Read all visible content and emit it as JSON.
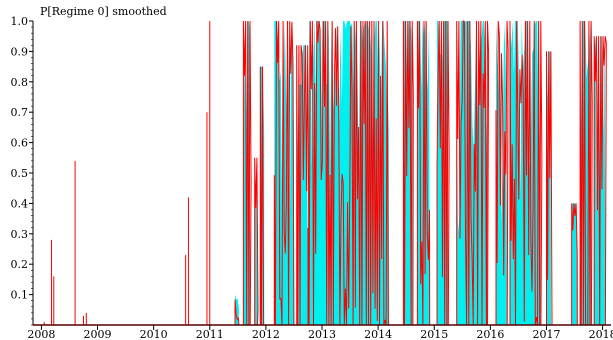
{
  "chart_data": {
    "type": "area",
    "title": "P[Regime 0] smoothed",
    "xlabel": "",
    "ylabel": "",
    "xlim": [
      2007.85,
      2018.15
    ],
    "ylim": [
      0,
      1.0
    ],
    "x_ticks": [
      "2008",
      "2009",
      "2010",
      "2011",
      "2012",
      "2013",
      "2014",
      "2015",
      "2016",
      "2017",
      "2018"
    ],
    "y_ticks": [
      "0.1",
      "0.2",
      "0.3",
      "0.4",
      "0.5",
      "0.6",
      "0.7",
      "0.8",
      "0.9",
      "1.0"
    ],
    "grid": false,
    "legend": "none",
    "colors": {
      "fill": "#00f0f0",
      "line": "#ff0000",
      "axis": "#000000"
    },
    "spikes": [
      {
        "x": 2008.05,
        "y": 0.01
      },
      {
        "x": 2008.18,
        "y": 0.28
      },
      {
        "x": 2008.22,
        "y": 0.16
      },
      {
        "x": 2008.6,
        "y": 0.54
      },
      {
        "x": 2008.75,
        "y": 0.03
      },
      {
        "x": 2008.8,
        "y": 0.04
      },
      {
        "x": 2010.57,
        "y": 0.23
      },
      {
        "x": 2010.62,
        "y": 0.42
      },
      {
        "x": 2010.95,
        "y": 0.7
      },
      {
        "x": 2011.0,
        "y": 1.0
      }
    ],
    "regimes": [
      {
        "start": 2011.45,
        "end": 2011.52,
        "level": 0.1
      },
      {
        "start": 2011.6,
        "end": 2011.72,
        "level": 1.0
      },
      {
        "start": 2011.8,
        "end": 2011.85,
        "level": 0.55
      },
      {
        "start": 2011.9,
        "end": 2011.97,
        "level": 0.85
      },
      {
        "start": 2012.15,
        "end": 2012.5,
        "level": 1.0
      },
      {
        "start": 2012.55,
        "end": 2012.75,
        "level": 0.92
      },
      {
        "start": 2012.75,
        "end": 2014.2,
        "level": 1.0
      },
      {
        "start": 2014.45,
        "end": 2014.62,
        "level": 1.0
      },
      {
        "start": 2014.7,
        "end": 2014.92,
        "level": 1.0
      },
      {
        "start": 2015.05,
        "end": 2015.25,
        "level": 1.0
      },
      {
        "start": 2015.4,
        "end": 2015.95,
        "level": 1.0
      },
      {
        "start": 2016.1,
        "end": 2016.3,
        "level": 1.0
      },
      {
        "start": 2016.35,
        "end": 2016.9,
        "level": 1.0
      },
      {
        "start": 2017.0,
        "end": 2017.08,
        "level": 0.9
      },
      {
        "start": 2017.45,
        "end": 2017.55,
        "level": 0.4
      },
      {
        "start": 2017.6,
        "end": 2017.8,
        "level": 1.0
      },
      {
        "start": 2017.85,
        "end": 2018.05,
        "level": 0.95
      }
    ]
  }
}
